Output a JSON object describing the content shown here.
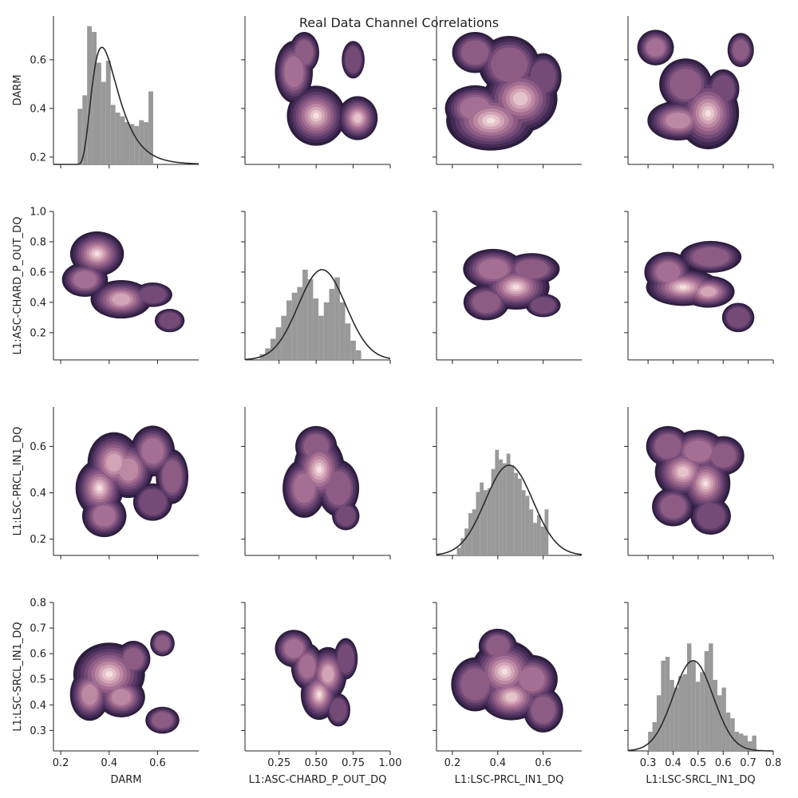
{
  "chart_data": {
    "type": "pairplot",
    "title": "Real Data Channel Correlations",
    "variables": [
      "DARM",
      "L1:ASC-CHARD_P_OUT_DQ",
      "L1:LSC-PRCL_IN1_DQ",
      "L1:LSC-SRCL_IN1_DQ"
    ],
    "ranges": [
      [
        0.17,
        0.77
      ],
      [
        0.02,
        1.0
      ],
      [
        0.13,
        0.77
      ],
      [
        0.22,
        0.8
      ]
    ],
    "ticks": [
      {
        "values": [
          0.2,
          0.4,
          0.6
        ],
        "labels": [
          "0.2",
          "0.4",
          "0.6"
        ]
      },
      {
        "values": [
          0.25,
          0.5,
          0.75,
          1.0
        ],
        "labels": [
          "0.25",
          "0.50",
          "0.75",
          "1.00"
        ]
      },
      {
        "values": [
          0.2,
          0.4,
          0.6
        ],
        "labels": [
          "0.2",
          "0.4",
          "0.6"
        ]
      },
      {
        "values": [
          0.3,
          0.4,
          0.5,
          0.6,
          0.7,
          0.8
        ],
        "labels": [
          "0.3",
          "0.4",
          "0.5",
          "0.6",
          "0.7",
          "0.8"
        ]
      }
    ],
    "y_ticks": [
      {
        "values": [
          0.2,
          0.4,
          0.6
        ],
        "labels": [
          "0.2",
          "0.4",
          "0.6"
        ]
      },
      {
        "values": [
          0.2,
          0.4,
          0.6,
          0.8,
          1.0
        ],
        "labels": [
          "0.2",
          "0.4",
          "0.6",
          "0.8",
          "1.0"
        ]
      },
      {
        "values": [
          0.2,
          0.4,
          0.6
        ],
        "labels": [
          "0.2",
          "0.4",
          "0.6"
        ]
      },
      {
        "values": [
          0.3,
          0.4,
          0.5,
          0.6,
          0.7,
          0.8
        ],
        "labels": [
          "0.3",
          "0.4",
          "0.5",
          "0.6",
          "0.7",
          "0.8"
        ]
      }
    ],
    "y_ranges": [
      [
        0.17,
        0.78
      ],
      [
        0.02,
        1.0
      ],
      [
        0.13,
        0.77
      ],
      [
        0.22,
        0.8
      ]
    ],
    "histograms": [
      {
        "var": "DARM",
        "bin_start": 0.27,
        "bin_width": 0.0195,
        "counts": [
          0.29,
          0.36,
          0.72,
          0.69,
          0.53,
          0.43,
          0.54,
          0.31,
          0.27,
          0.25,
          0.22,
          0.21,
          0.2,
          0.23,
          0.22,
          0.38
        ],
        "fit": {
          "type": "lognormal",
          "mode": 0.37
        }
      },
      {
        "var": "L1:ASC-CHARD_P_OUT_DQ",
        "bin_start": 0.12,
        "bin_width": 0.036,
        "counts": [
          0.03,
          0.06,
          0.11,
          0.17,
          0.23,
          0.31,
          0.35,
          0.38,
          0.47,
          0.42,
          0.32,
          0.23,
          0.3,
          0.37,
          0.43,
          0.3,
          0.19,
          0.1,
          0.05
        ],
        "fit": {
          "type": "normal",
          "mean": 0.54,
          "sd": 0.16
        }
      },
      {
        "var": "L1:LSC-PRCL_IN1_DQ",
        "bin_start": 0.22,
        "bin_width": 0.0168,
        "counts": [
          0.04,
          0.09,
          0.14,
          0.22,
          0.24,
          0.33,
          0.38,
          0.34,
          0.35,
          0.45,
          0.55,
          0.5,
          0.48,
          0.53,
          0.47,
          0.43,
          0.4,
          0.34,
          0.31,
          0.24,
          0.17,
          0.21,
          0.15,
          0.24
        ],
        "fit": {
          "type": "normal",
          "mean": 0.45,
          "sd": 0.105
        }
      },
      {
        "var": "L1:LSC-SRCL_IN1_DQ",
        "bin_start": 0.3,
        "bin_width": 0.0173,
        "counts": [
          0.1,
          0.15,
          0.29,
          0.47,
          0.49,
          0.37,
          0.33,
          0.39,
          0.4,
          0.56,
          0.47,
          0.36,
          0.41,
          0.52,
          0.56,
          0.37,
          0.29,
          0.33,
          0.2,
          0.17,
          0.1,
          0.09,
          0.08,
          0.05,
          0.08
        ],
        "fit": {
          "type": "normal",
          "mean": 0.48,
          "sd": 0.08
        }
      }
    ],
    "kde_panels": [
      {
        "x": "DARM",
        "y": "L1:ASC-CHARD_P_OUT_DQ",
        "blobs": [
          [
            0.35,
            0.72,
            0.045,
            0.06,
            1.0
          ],
          [
            0.3,
            0.55,
            0.05,
            0.06,
            0.6
          ],
          [
            0.45,
            0.42,
            0.06,
            0.06,
            0.75
          ],
          [
            0.58,
            0.45,
            0.05,
            0.05,
            0.4
          ],
          [
            0.65,
            0.28,
            0.04,
            0.05,
            0.35
          ]
        ]
      },
      {
        "x": "DARM",
        "y": "L1:LSC-PRCL_IN1_DQ",
        "blobs": [
          [
            0.36,
            0.42,
            0.04,
            0.05,
            1.0
          ],
          [
            0.42,
            0.53,
            0.05,
            0.06,
            0.8
          ],
          [
            0.48,
            0.5,
            0.05,
            0.06,
            0.7
          ],
          [
            0.58,
            0.58,
            0.05,
            0.06,
            0.55
          ],
          [
            0.66,
            0.47,
            0.04,
            0.07,
            0.45
          ],
          [
            0.38,
            0.3,
            0.05,
            0.05,
            0.55
          ],
          [
            0.58,
            0.36,
            0.05,
            0.05,
            0.4
          ]
        ]
      },
      {
        "x": "DARM",
        "y": "L1:LSC-SRCL_IN1_DQ",
        "blobs": [
          [
            0.4,
            0.52,
            0.06,
            0.05,
            1.0
          ],
          [
            0.32,
            0.44,
            0.04,
            0.05,
            0.7
          ],
          [
            0.45,
            0.43,
            0.05,
            0.04,
            0.65
          ],
          [
            0.5,
            0.58,
            0.04,
            0.04,
            0.5
          ],
          [
            0.62,
            0.64,
            0.03,
            0.03,
            0.45
          ],
          [
            0.62,
            0.34,
            0.04,
            0.03,
            0.5
          ]
        ]
      },
      {
        "x": "L1:ASC-CHARD_P_OUT_DQ",
        "y": "DARM",
        "blobs": [
          [
            0.5,
            0.37,
            0.08,
            0.05,
            1.0
          ],
          [
            0.78,
            0.36,
            0.06,
            0.04,
            0.85
          ],
          [
            0.35,
            0.55,
            0.07,
            0.07,
            0.55
          ],
          [
            0.42,
            0.63,
            0.06,
            0.05,
            0.45
          ],
          [
            0.75,
            0.6,
            0.05,
            0.05,
            0.35
          ]
        ]
      },
      {
        "x": "L1:ASC-CHARD_P_OUT_DQ",
        "y": "L1:LSC-PRCL_IN1_DQ",
        "blobs": [
          [
            0.52,
            0.5,
            0.07,
            0.06,
            1.0
          ],
          [
            0.42,
            0.42,
            0.08,
            0.07,
            0.55
          ],
          [
            0.65,
            0.42,
            0.08,
            0.07,
            0.5
          ],
          [
            0.5,
            0.6,
            0.08,
            0.05,
            0.5
          ],
          [
            0.7,
            0.3,
            0.06,
            0.04,
            0.35
          ]
        ]
      },
      {
        "x": "L1:ASC-CHARD_P_OUT_DQ",
        "y": "L1:LSC-SRCL_IN1_DQ",
        "blobs": [
          [
            0.52,
            0.44,
            0.05,
            0.04,
            1.0
          ],
          [
            0.58,
            0.52,
            0.06,
            0.05,
            0.75
          ],
          [
            0.35,
            0.62,
            0.07,
            0.04,
            0.55
          ],
          [
            0.44,
            0.55,
            0.06,
            0.05,
            0.55
          ],
          [
            0.7,
            0.58,
            0.05,
            0.05,
            0.4
          ],
          [
            0.65,
            0.38,
            0.05,
            0.04,
            0.4
          ]
        ]
      },
      {
        "x": "L1:LSC-PRCL_IN1_DQ",
        "y": "DARM",
        "blobs": [
          [
            0.37,
            0.35,
            0.08,
            0.05,
            1.0
          ],
          [
            0.5,
            0.44,
            0.07,
            0.06,
            0.9
          ],
          [
            0.3,
            0.4,
            0.07,
            0.05,
            0.6
          ],
          [
            0.45,
            0.58,
            0.08,
            0.07,
            0.45
          ],
          [
            0.3,
            0.63,
            0.06,
            0.05,
            0.45
          ],
          [
            0.6,
            0.53,
            0.05,
            0.06,
            0.4
          ]
        ]
      },
      {
        "x": "L1:LSC-PRCL_IN1_DQ",
        "y": "L1:ASC-CHARD_P_OUT_DQ",
        "blobs": [
          [
            0.48,
            0.5,
            0.06,
            0.06,
            1.0
          ],
          [
            0.38,
            0.62,
            0.07,
            0.07,
            0.6
          ],
          [
            0.55,
            0.62,
            0.07,
            0.06,
            0.5
          ],
          [
            0.35,
            0.4,
            0.06,
            0.07,
            0.45
          ],
          [
            0.6,
            0.38,
            0.05,
            0.05,
            0.35
          ]
        ]
      },
      {
        "x": "L1:LSC-PRCL_IN1_DQ",
        "y": "L1:LSC-SRCL_IN1_DQ",
        "blobs": [
          [
            0.43,
            0.53,
            0.06,
            0.05,
            1.0
          ],
          [
            0.46,
            0.43,
            0.06,
            0.04,
            0.85
          ],
          [
            0.55,
            0.5,
            0.06,
            0.05,
            0.6
          ],
          [
            0.3,
            0.48,
            0.06,
            0.06,
            0.5
          ],
          [
            0.6,
            0.38,
            0.05,
            0.05,
            0.5
          ],
          [
            0.4,
            0.63,
            0.05,
            0.04,
            0.45
          ]
        ]
      },
      {
        "x": "L1:LSC-SRCL_IN1_DQ",
        "y": "DARM",
        "blobs": [
          [
            0.54,
            0.38,
            0.05,
            0.06,
            1.0
          ],
          [
            0.42,
            0.35,
            0.06,
            0.04,
            0.7
          ],
          [
            0.45,
            0.5,
            0.06,
            0.06,
            0.5
          ],
          [
            0.33,
            0.65,
            0.04,
            0.04,
            0.55
          ],
          [
            0.67,
            0.64,
            0.03,
            0.04,
            0.5
          ],
          [
            0.6,
            0.48,
            0.04,
            0.05,
            0.4
          ]
        ]
      },
      {
        "x": "L1:LSC-SRCL_IN1_DQ",
        "y": "L1:ASC-CHARD_P_OUT_DQ",
        "blobs": [
          [
            0.44,
            0.5,
            0.06,
            0.05,
            1.0
          ],
          [
            0.54,
            0.47,
            0.05,
            0.05,
            0.75
          ],
          [
            0.38,
            0.6,
            0.05,
            0.07,
            0.6
          ],
          [
            0.55,
            0.7,
            0.07,
            0.06,
            0.5
          ],
          [
            0.66,
            0.3,
            0.04,
            0.06,
            0.4
          ]
        ]
      },
      {
        "x": "L1:LSC-SRCL_IN1_DQ",
        "y": "L1:LSC-PRCL_IN1_DQ",
        "blobs": [
          [
            0.53,
            0.44,
            0.04,
            0.05,
            1.0
          ],
          [
            0.44,
            0.49,
            0.05,
            0.05,
            0.85
          ],
          [
            0.5,
            0.58,
            0.06,
            0.05,
            0.55
          ],
          [
            0.38,
            0.6,
            0.05,
            0.05,
            0.5
          ],
          [
            0.6,
            0.56,
            0.05,
            0.05,
            0.45
          ],
          [
            0.4,
            0.34,
            0.05,
            0.05,
            0.45
          ],
          [
            0.55,
            0.3,
            0.05,
            0.05,
            0.4
          ]
        ]
      }
    ],
    "colors": {
      "hist_fill": "#999999",
      "fit_line": "#2a2a2a",
      "kde_levels": [
        "#2d1e3e",
        "#432a55",
        "#5a3a66",
        "#744a77",
        "#8d5c84",
        "#a46f92",
        "#bc88a2",
        "#d2a5b6",
        "#e5c3cb",
        "#f4e0e2"
      ]
    }
  }
}
